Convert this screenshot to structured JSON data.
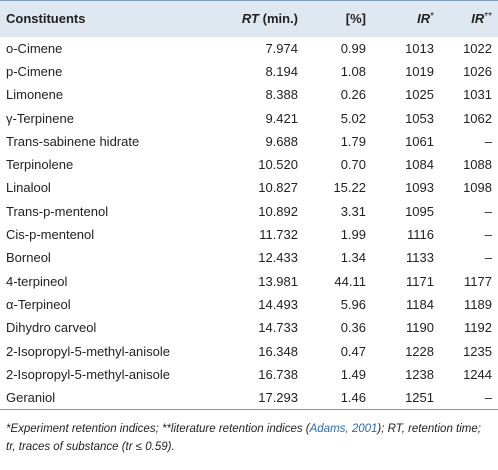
{
  "header": [
    [
      "Constituents"
    ],
    [
      "RT",
      " (min.)"
    ],
    [
      "[%]"
    ],
    [
      "IR",
      "*"
    ],
    [
      "IR",
      "**"
    ]
  ],
  "rows": [
    [
      "o-Cimene",
      "7.974",
      "0.99",
      "1013",
      "1022"
    ],
    [
      "p-Cimene",
      "8.194",
      "1.08",
      "1019",
      "1026"
    ],
    [
      "Limonene",
      "8.388",
      "0.26",
      "1025",
      "1031"
    ],
    [
      "γ-Terpinene",
      "9.421",
      "5.02",
      "1053",
      "1062"
    ],
    [
      "Trans-sabinene hidrate",
      "9.688",
      "1.79",
      "1061",
      "–"
    ],
    [
      "Terpinolene",
      "10.520",
      "0.70",
      "1084",
      "1088"
    ],
    [
      "Linalool",
      "10.827",
      "15.22",
      "1093",
      "1098"
    ],
    [
      "Trans-p-mentenol",
      "10.892",
      "3.31",
      "1095",
      "–"
    ],
    [
      "Cis-p-mentenol",
      "11.732",
      "1.99",
      "1116",
      "–"
    ],
    [
      "Borneol",
      "12.433",
      "1.34",
      "1133",
      "–"
    ],
    [
      "4-terpineol",
      "13.981",
      "44.11",
      "1171",
      "1177"
    ],
    [
      "α-Terpineol",
      "14.493",
      "5.96",
      "1184",
      "1189"
    ],
    [
      "Dihydro carveol",
      "14.733",
      "0.36",
      "1190",
      "1192"
    ],
    [
      "2-Isopropyl-5-methyl-anisole",
      "16.348",
      "0.47",
      "1228",
      "1235"
    ],
    [
      "2-Isopropyl-5-methyl-anisole",
      "16.738",
      "1.49",
      "1238",
      "1244"
    ],
    [
      "Geraniol",
      "17.293",
      "1.46",
      "1251",
      "–"
    ]
  ],
  "footnote": [
    "*Experiment retention indices; **literature retention indices (",
    "Adams, 2001",
    "); RT, retention time; tr, traces of substance (tr ≤ 0.59)."
  ]
}
